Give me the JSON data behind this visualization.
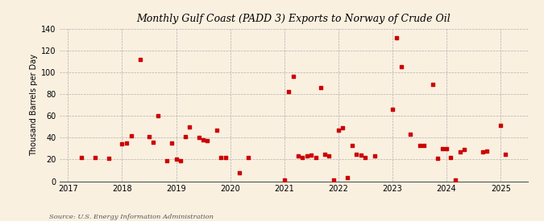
{
  "title": "Monthly Gulf Coast (PADD 3) Exports to Norway of Crude Oil",
  "ylabel": "Thousand Barrels per Day",
  "source": "Source: U.S. Energy Information Administration",
  "background_color": "#faf0e0",
  "marker_color": "#cc0000",
  "ylim": [
    0,
    140
  ],
  "yticks": [
    0,
    20,
    40,
    60,
    80,
    100,
    120,
    140
  ],
  "xlim_start": 2016.85,
  "xlim_end": 2025.5,
  "xticks": [
    2017,
    2018,
    2019,
    2020,
    2021,
    2022,
    2023,
    2024,
    2025
  ],
  "data_points": [
    [
      2017.25,
      22
    ],
    [
      2017.5,
      22
    ],
    [
      2017.75,
      21
    ],
    [
      2018.0,
      34
    ],
    [
      2018.08,
      35
    ],
    [
      2018.17,
      42
    ],
    [
      2018.33,
      112
    ],
    [
      2018.5,
      41
    ],
    [
      2018.58,
      36
    ],
    [
      2018.67,
      60
    ],
    [
      2018.83,
      19
    ],
    [
      2018.92,
      35
    ],
    [
      2019.0,
      20
    ],
    [
      2019.08,
      19
    ],
    [
      2019.17,
      41
    ],
    [
      2019.25,
      50
    ],
    [
      2019.42,
      40
    ],
    [
      2019.5,
      38
    ],
    [
      2019.58,
      37
    ],
    [
      2019.75,
      47
    ],
    [
      2019.83,
      22
    ],
    [
      2019.92,
      22
    ],
    [
      2020.17,
      8
    ],
    [
      2020.33,
      22
    ],
    [
      2021.0,
      1
    ],
    [
      2021.08,
      82
    ],
    [
      2021.17,
      96
    ],
    [
      2021.25,
      23
    ],
    [
      2021.33,
      22
    ],
    [
      2021.42,
      23
    ],
    [
      2021.5,
      24
    ],
    [
      2021.58,
      22
    ],
    [
      2021.67,
      86
    ],
    [
      2021.75,
      25
    ],
    [
      2021.83,
      23
    ],
    [
      2021.92,
      1
    ],
    [
      2022.0,
      47
    ],
    [
      2022.08,
      49
    ],
    [
      2022.17,
      3
    ],
    [
      2022.25,
      33
    ],
    [
      2022.33,
      25
    ],
    [
      2022.42,
      24
    ],
    [
      2022.5,
      22
    ],
    [
      2022.67,
      23
    ],
    [
      2023.0,
      66
    ],
    [
      2023.08,
      132
    ],
    [
      2023.17,
      105
    ],
    [
      2023.33,
      43
    ],
    [
      2023.5,
      33
    ],
    [
      2023.58,
      33
    ],
    [
      2023.75,
      89
    ],
    [
      2023.83,
      21
    ],
    [
      2023.92,
      30
    ],
    [
      2024.0,
      30
    ],
    [
      2024.08,
      22
    ],
    [
      2024.17,
      1
    ],
    [
      2024.25,
      27
    ],
    [
      2024.33,
      29
    ],
    [
      2024.67,
      27
    ],
    [
      2024.75,
      28
    ],
    [
      2025.0,
      51
    ],
    [
      2025.08,
      25
    ]
  ]
}
